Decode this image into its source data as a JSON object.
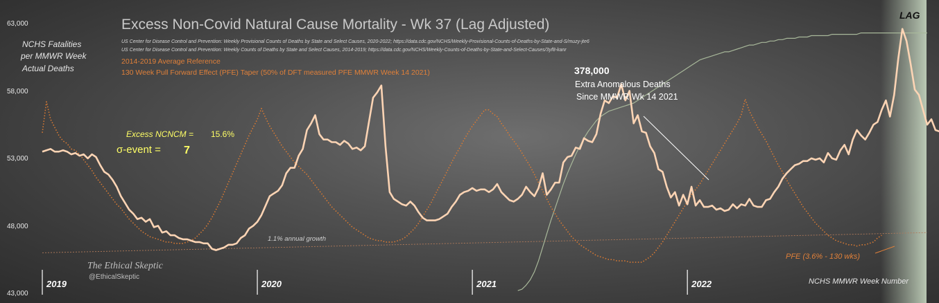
{
  "title": "Excess Non-Covid Natural Cause Mortality - Wk 37 (Lag Adjusted)",
  "sources": [
    "US Center for Disease Control and Prevention: Weekly  Provisional Counts of Deaths by State and Select Causes, 2020-2022; https://data.cdc.gov/NCHS/Weekly-Provisional-Counts-of-Deaths-by-State-and-S/muzy-jte6",
    "US Center for Disease Control and Prevention: Weekly  Counts of Deaths by State and Select Causes, 2014-2019; https://data.cdc.gov/NCHS/Weekly-Counts-of-Deaths-by-State-and-Select-Causes/3yf8-kanr"
  ],
  "legend": {
    "reference": "2014-2019 Average Reference",
    "pfe_taper": "130 Week Pull Forward Effect (PFE) Taper (50% of DFT measured PFE MMWR Week 14 2021)"
  },
  "ylabel": [
    "NCHS Fatalities",
    "per MMWR Week",
    "Actual Deaths"
  ],
  "xlabel": "NCHS MMWR Week Number",
  "lag_label": "LAG",
  "excess": {
    "label": "Excess NCNCM  =",
    "value": "15.6%",
    "sigma_label": "σ-event =",
    "sigma_value": "7"
  },
  "anomalous": {
    "total": "378,000",
    "line1": "Extra Anomalous Deaths",
    "line2": "Since MMWR Wk 14 2021"
  },
  "growth_label": "1.1% annual growth",
  "pfe_label": "PFE (3.6% - 130 wks)",
  "brand": {
    "name": "The Ethical Skeptic",
    "handle": "@EthicalSkeptic"
  },
  "colors": {
    "actual": "#fcd4b4",
    "reference": "#d97a33",
    "cumulative": "#a8b89a",
    "growth": "#b07a5a"
  },
  "chart_data": {
    "type": "line",
    "ylim": [
      43000,
      63000
    ],
    "yticks": [
      "63,000",
      "58,000",
      "53,000",
      "48,000",
      "43,000"
    ],
    "ytick_values": [
      63000,
      58000,
      53000,
      48000,
      43000
    ],
    "years": [
      "2019",
      "2020",
      "2021",
      "2022"
    ],
    "x_range": [
      0,
      214
    ],
    "year_start_weeks": [
      0,
      52,
      104,
      156
    ],
    "series": [
      {
        "key": "actual",
        "x_start": 0,
        "values": [
          53400,
          53500,
          53600,
          53400,
          53400,
          53500,
          53400,
          53200,
          53300,
          53100,
          53200,
          52900,
          53200,
          53000,
          52400,
          51900,
          51700,
          51300,
          50800,
          50100,
          49600,
          49100,
          48800,
          48400,
          48500,
          48200,
          48400,
          47800,
          47900,
          47400,
          47500,
          47200,
          47200,
          47000,
          46900,
          46900,
          46800,
          46700,
          46700,
          46600,
          46600,
          46200,
          46100,
          46200,
          46300,
          46500,
          46500,
          46600,
          47000,
          47200,
          47700,
          47900,
          48200,
          48700,
          49400,
          50100,
          50300,
          50500,
          50900,
          51800,
          52200,
          52200,
          53100,
          53600,
          55000,
          55500,
          56100,
          54700,
          54300,
          54300,
          54100,
          54100,
          53900,
          54200,
          54000,
          53600,
          53700,
          53500,
          53800,
          55600,
          57400,
          57800,
          58300,
          53800,
          50400,
          49900,
          49700,
          49500,
          49400,
          49700,
          49400,
          48900,
          48500,
          48300,
          48300,
          48300,
          48400,
          48600,
          48800,
          49300,
          49700,
          50200,
          50400,
          50500,
          50700,
          50500,
          50600,
          50600,
          50400,
          50600,
          51000,
          50400,
          50100,
          49800,
          49700,
          49900,
          50200,
          50800,
          50400,
          50100,
          50700,
          51800,
          50200,
          50600,
          51100,
          51100,
          52600,
          53000,
          53100,
          53700,
          53600,
          54400,
          54200,
          54100,
          54700,
          56200,
          57200,
          57000,
          57500,
          57400,
          58400,
          57200,
          57900,
          55500,
          56100,
          54900,
          54800,
          53800,
          53300,
          52100,
          51900,
          50800,
          50000,
          50400,
          49400,
          50200,
          49500,
          50800,
          49400,
          49800,
          49300,
          49300,
          49400,
          49100,
          49200,
          49000,
          49100,
          49500,
          49200,
          49500,
          49400,
          49900,
          49400,
          49300,
          49300,
          49800,
          49900,
          50400,
          50800,
          51400,
          51800,
          52100,
          52400,
          52500,
          52700,
          52700,
          52900,
          52800,
          52900,
          52600,
          53300,
          52900,
          52800,
          53500,
          53900,
          53200,
          54300,
          55000,
          54600,
          54300,
          54800,
          55400,
          55600,
          56500,
          57200,
          56000,
          57600,
          60300,
          62500,
          61600,
          59900,
          58000,
          57600,
          56500,
          55400,
          55800,
          55000,
          54900,
          54700,
          53900,
          54500,
          54100,
          54100,
          53600,
          52800,
          52700,
          52200,
          51600,
          51200,
          51000,
          50800,
          51300,
          51600,
          51700,
          51700,
          52100,
          52300,
          54100,
          53100,
          53500,
          53700,
          53700,
          53900,
          54200,
          54200,
          54500,
          54100,
          54400
        ]
      },
      {
        "key": "reference",
        "x_start": 0,
        "values": [
          54800,
          57100,
          55800,
          55200,
          54600,
          54200,
          54000,
          53600,
          53500,
          53200,
          52800,
          52400,
          52000,
          51500,
          51100,
          50700,
          50300,
          49900,
          49500,
          49200,
          48800,
          48400,
          48100,
          47800,
          47500,
          47300,
          47100,
          47000,
          46900,
          46800,
          46700,
          46700,
          46600,
          46600,
          46600,
          46700,
          46800,
          47000,
          47300,
          47600,
          48000,
          48500,
          49100,
          49700,
          50400,
          51100,
          51800,
          52500,
          53200,
          53900,
          54600,
          55200,
          55800,
          56600,
          55900,
          55300,
          54800,
          54300,
          53800,
          53400,
          53000,
          52600,
          52300,
          52000,
          51700,
          51300,
          50900,
          50500,
          50100,
          49700,
          49300,
          49000,
          48700,
          48400,
          48100,
          47800,
          47600,
          47400,
          47200,
          47000,
          46900,
          46800,
          46800,
          46700,
          46700,
          46700,
          46800,
          46900,
          47100,
          47400,
          47700,
          48100,
          48600,
          49100,
          49600,
          50200,
          50800,
          51400,
          52000,
          52600,
          53200,
          53700,
          54300,
          54800,
          55300,
          55700,
          56100,
          56500,
          56500,
          56200,
          56000,
          55500,
          55100,
          54600,
          54200,
          53800,
          53300,
          52800,
          52300,
          51700,
          51100,
          50500,
          49900,
          49300,
          48800,
          48300,
          47900,
          47500,
          47100,
          46800,
          46500,
          46300,
          46100,
          45900,
          45700,
          45600,
          45500,
          45400,
          45400,
          45300,
          45300,
          45300,
          45200,
          45200,
          45200,
          45200,
          45400,
          45600,
          45900,
          46300,
          46700,
          47200,
          47700,
          48200,
          48700,
          49200,
          49700,
          50200,
          50600,
          51000,
          51500,
          52000,
          52500,
          53000,
          53500,
          54000,
          54500,
          55000,
          55500,
          56100,
          57300,
          56400,
          55800,
          55200,
          54700,
          54200,
          53600,
          53000,
          52400,
          51900,
          51300,
          50800,
          50300,
          49800,
          49300,
          48900,
          48500,
          48100,
          47800,
          47500,
          47200,
          47000,
          46800,
          46700,
          46600,
          46500,
          46500,
          46400,
          46500,
          46500,
          46600,
          46700,
          47000,
          47200
        ]
      },
      {
        "key": "cumulative",
        "x_start": 115,
        "values": [
          43100,
          43200,
          43500,
          43900,
          44500,
          45300,
          46300,
          47300,
          48300,
          49200,
          50100,
          51000,
          51800,
          52500,
          53200,
          53800,
          54400,
          54900,
          55300,
          55700,
          56000,
          56200,
          56400,
          56500,
          56600,
          56700,
          56800,
          56900,
          57000,
          57200,
          57400,
          57600,
          57800,
          58000,
          58200,
          58400,
          58600,
          58800,
          59000,
          59200,
          59400,
          59600,
          59800,
          60000,
          60200,
          60300,
          60400,
          60500,
          60600,
          60700,
          60800,
          60800,
          60900,
          61000,
          61100,
          61200,
          61300,
          61300,
          61400,
          61500,
          61500,
          61600,
          61600,
          61700,
          61700,
          61800,
          61800,
          61800,
          61900,
          61900,
          61900,
          62000,
          62000,
          62000,
          62000,
          62000,
          62100,
          62100,
          62100,
          62100,
          62100,
          62100,
          62100,
          62200,
          62200,
          62200,
          62200,
          62200,
          62200,
          62200,
          62200,
          62200,
          62200,
          62200,
          62200,
          62200,
          62200,
          62200,
          62200,
          62200
        ]
      },
      {
        "key": "growth",
        "x_start": 0,
        "values": [
          45900,
          47400
        ],
        "x_end": 214
      }
    ]
  }
}
